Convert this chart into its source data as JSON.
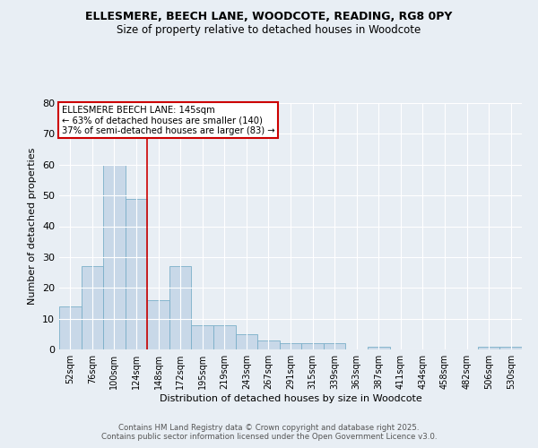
{
  "title_line1": "ELLESMERE, BEECH LANE, WOODCOTE, READING, RG8 0PY",
  "title_line2": "Size of property relative to detached houses in Woodcote",
  "xlabel": "Distribution of detached houses by size in Woodcote",
  "ylabel": "Number of detached properties",
  "categories": [
    "52sqm",
    "76sqm",
    "100sqm",
    "124sqm",
    "148sqm",
    "172sqm",
    "195sqm",
    "219sqm",
    "243sqm",
    "267sqm",
    "291sqm",
    "315sqm",
    "339sqm",
    "363sqm",
    "387sqm",
    "411sqm",
    "434sqm",
    "458sqm",
    "482sqm",
    "506sqm",
    "530sqm"
  ],
  "values": [
    14,
    27,
    60,
    49,
    16,
    27,
    8,
    8,
    5,
    3,
    2,
    2,
    2,
    0,
    1,
    0,
    0,
    0,
    0,
    1,
    1
  ],
  "bar_color": "#c8d8e8",
  "bar_edge_color": "#7aafc8",
  "subject_line_index": 3.5,
  "subject_line_color": "#cc0000",
  "annotation_title": "ELLESMERE BEECH LANE: 145sqm",
  "annotation_line1": "← 63% of detached houses are smaller (140)",
  "annotation_line2": "37% of semi-detached houses are larger (83) →",
  "annotation_box_color": "#ffffff",
  "annotation_box_edge_color": "#cc0000",
  "ylim": [
    0,
    80
  ],
  "yticks": [
    0,
    10,
    20,
    30,
    40,
    50,
    60,
    70,
    80
  ],
  "background_color": "#e8eef4",
  "grid_color": "#ffffff",
  "footer_line1": "Contains HM Land Registry data © Crown copyright and database right 2025.",
  "footer_line2": "Contains public sector information licensed under the Open Government Licence v3.0."
}
